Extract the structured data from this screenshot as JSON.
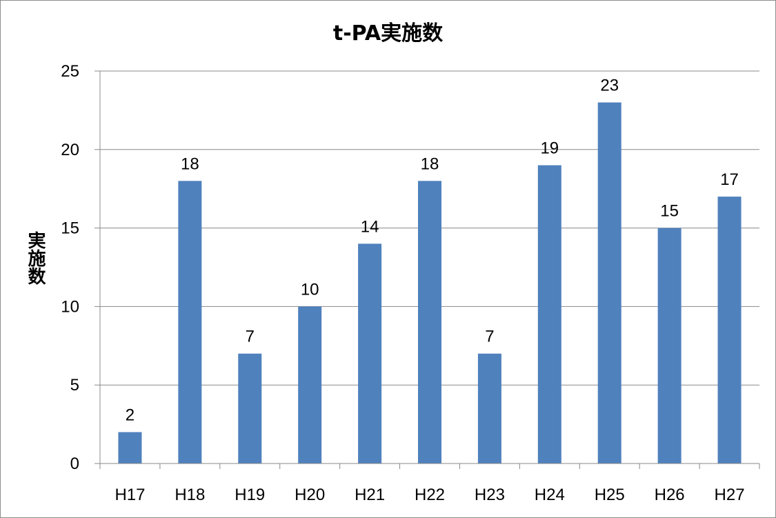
{
  "chart_data": {
    "type": "bar",
    "title": "t-PA実施数",
    "xlabel": "",
    "ylabel": "実施数",
    "categories": [
      "H17",
      "H18",
      "H19",
      "H20",
      "H21",
      "H22",
      "H23",
      "H24",
      "H25",
      "H26",
      "H27"
    ],
    "values": [
      2,
      18,
      7,
      10,
      14,
      18,
      7,
      19,
      23,
      15,
      17
    ],
    "ylim": [
      0,
      25
    ],
    "yticks": [
      0,
      5,
      10,
      15,
      20,
      25
    ],
    "grid": true,
    "data_labels": true,
    "legend": "none",
    "bar_color": "#4f81bd",
    "grid_color": "#888888"
  }
}
